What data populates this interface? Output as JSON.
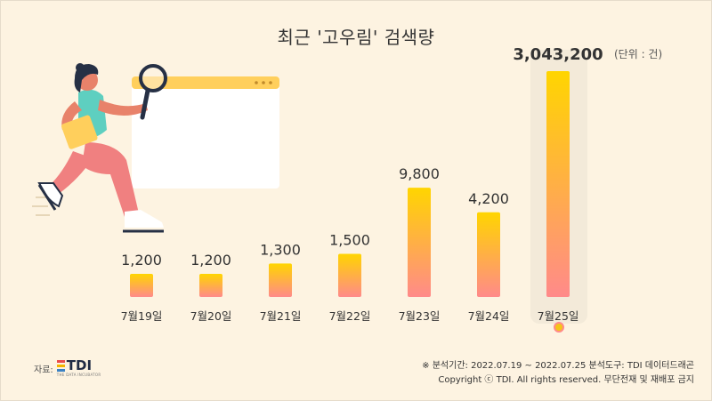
{
  "title": "최근 '고우림' 검색량",
  "unit_label": "(단위 : 건)",
  "source": {
    "label": "자료:",
    "logo_text": "TDI",
    "logo_subtitle": "THE DATA INCUBATOR"
  },
  "footer": {
    "line1": "※ 분석기간: 2022.07.19 ~ 2022.07.25   분석도구: TDI 데이터드래곤",
    "line2": "Copyright ⓒ TDI. All rights reserved. 무단전재 및 재배포 금지"
  },
  "colors": {
    "background": "#fdf3e1",
    "bar_top": "#ffd500",
    "bar_bottom": "#ff8a8a",
    "highlight_panel": "#f3ead9",
    "marker": "#f5c518",
    "logo_bar_1": "#e94b4b",
    "logo_bar_2": "#f4b400",
    "logo_bar_3": "#3b82c4"
  },
  "chart_data": {
    "type": "bar",
    "scale": "nonlinear (visual bar heights are not proportional)",
    "categories": [
      "7월19일",
      "7월20일",
      "7월21일",
      "7월22일",
      "7월23일",
      "7월24일",
      "7월25일"
    ],
    "values": [
      1200,
      1200,
      1300,
      1500,
      9800,
      4200,
      3043200
    ],
    "value_labels": [
      "1,200",
      "1,200",
      "1,300",
      "1,500",
      "9,800",
      "4,200",
      "3,043,200"
    ],
    "highlight_index": 6
  }
}
